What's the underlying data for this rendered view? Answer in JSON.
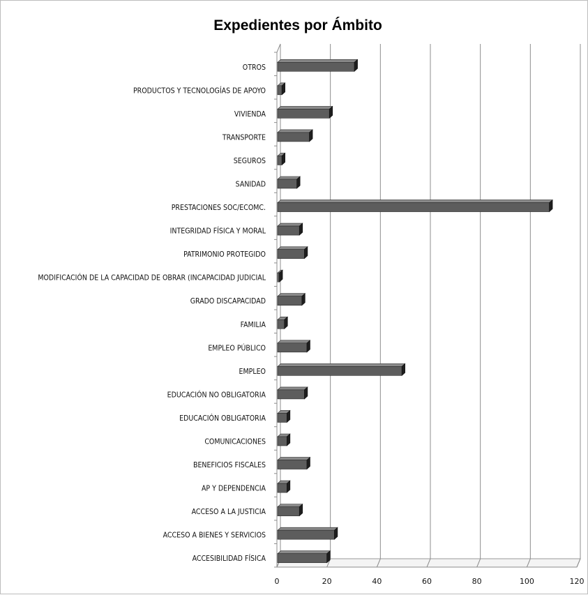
{
  "chart_data": {
    "type": "bar",
    "orientation": "horizontal",
    "title": "Expedientes por Ámbito",
    "categories": [
      "OTROS",
      "PRODUCTOS Y TECNOLOGÍAS DE APOYO",
      "VIVIENDA",
      "TRANSPORTE",
      "SEGUROS",
      "SANIDAD",
      "PRESTACIONES SOC/ECOMC.",
      "INTEGRIDAD FÍSICA Y MORAL",
      "PATRIMONIO PROTEGIDO",
      "MODIFICACIÓN DE LA CAPACIDAD DE OBRAR (INCAPACIDAD JUDICIAL",
      "GRADO DISCAPACIDAD",
      "FAMILIA",
      "EMPLEO PÚBLICO",
      "EMPLEO",
      "EDUCACIÓN NO OBLIGATORIA",
      "EDUCACIÓN OBLIGATORIA",
      "COMUNICACIONES",
      "BENEFICIOS FISCALES",
      "AP Y DEPENDENCIA",
      "ACCESO A LA JUSTICIA",
      "ACCESO A BIENES Y SERVICIOS",
      "ACCESIBILIDAD FÍSICA"
    ],
    "values": [
      31,
      2,
      21,
      13,
      2,
      8,
      109,
      9,
      11,
      1,
      10,
      3,
      12,
      50,
      11,
      4,
      4,
      12,
      4,
      9,
      23,
      20
    ],
    "xlim": [
      0,
      120
    ],
    "x_ticks": [
      "0",
      "20",
      "40",
      "60",
      "80",
      "100",
      "120"
    ],
    "grid": true,
    "style": "3d-bar",
    "colors": {
      "bar": "#5d5d5d",
      "bar_top": "#8a8a8a",
      "bar_side": "#1e1e1e",
      "grid": "#8c8c8c"
    }
  }
}
